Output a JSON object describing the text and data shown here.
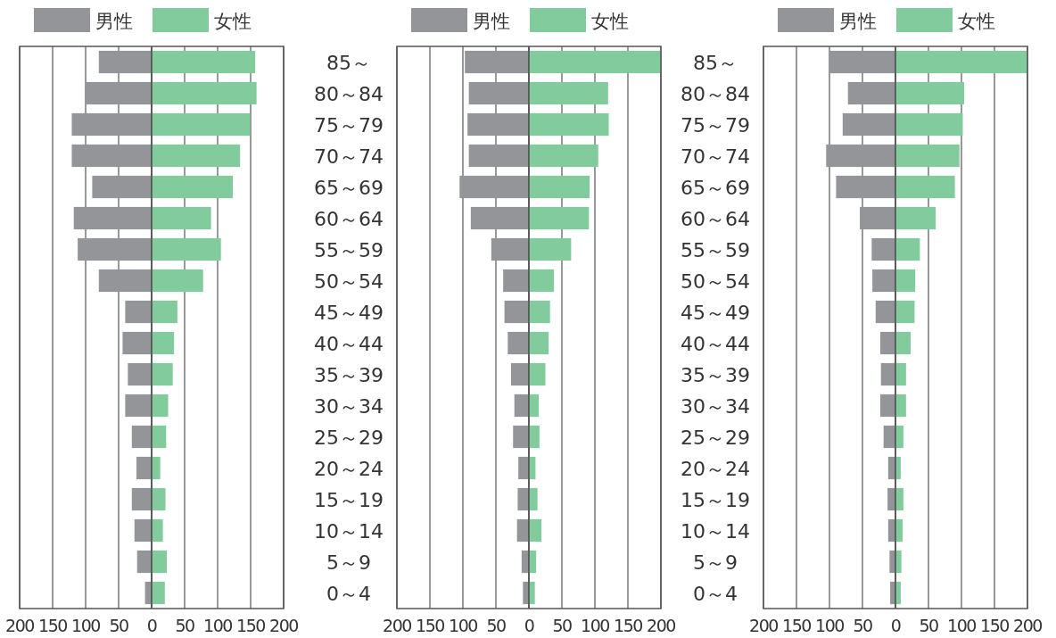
{
  "chart_data": [
    {
      "type": "bar",
      "orientation": "horizontal",
      "stacked": true,
      "legend": "top",
      "grid": "x",
      "tick_labels": "x",
      "categories": [
        null,
        null,
        null,
        null,
        null,
        null,
        null,
        null,
        null,
        null,
        null,
        null,
        null,
        null,
        null,
        null,
        null,
        null
      ],
      "xlim": [
        -200,
        200
      ],
      "xticks": [
        {
          "value": -200,
          "label": "200"
        },
        {
          "value": -150,
          "label": "150"
        },
        {
          "value": -100,
          "label": "100"
        },
        {
          "value": -50,
          "label": "50"
        },
        0,
        50,
        100,
        150,
        200
      ],
      "series": [
        {
          "name": "男性",
          "color": "#939598",
          "values": [
            -80,
            -101,
            -121,
            -121,
            -90,
            -118,
            -112,
            -80,
            -40,
            -44,
            -36,
            -40,
            -30,
            -23,
            -30,
            -26,
            -22,
            -10
          ]
        },
        {
          "name": "女性",
          "color": "#82cb9c",
          "values": [
            157,
            159,
            149,
            134,
            123,
            90,
            105,
            78,
            39,
            34,
            32,
            25,
            22,
            13,
            21,
            17,
            23,
            20
          ]
        }
      ]
    },
    {
      "type": "bar",
      "orientation": "horizontal",
      "legend": "top",
      "grid": "x",
      "categories": [
        "85～",
        "80～84",
        "75～79",
        "70～74",
        "65～69",
        "60～64",
        "55～59",
        "50～54",
        "45～49",
        "40～44",
        "35～39",
        "30～34",
        "25～29",
        "20～24",
        "15～19",
        "10～14",
        "5～9",
        "0～4"
      ],
      "xlim": [
        -200,
        200
      ],
      "xticks": [
        {
          "value": -200,
          "label": "200"
        },
        {
          "value": -150,
          "label": "150"
        },
        {
          "value": -100,
          "label": "100"
        },
        {
          "value": -50,
          "label": "50"
        },
        0,
        50,
        100,
        150,
        200
      ],
      "stacked": true,
      "series": [
        {
          "name": "男性",
          "color": "#939598",
          "values": [
            -97,
            -91,
            -93,
            -91,
            -105,
            -88,
            -57,
            -39,
            -37,
            -32,
            -27,
            -22,
            -24,
            -16,
            -17,
            -18,
            -11,
            -9
          ]
        },
        {
          "name": "女性",
          "color": "#82cb9c",
          "values": [
            200,
            120,
            121,
            105,
            92,
            91,
            64,
            38,
            32,
            30,
            25,
            15,
            16,
            10,
            13,
            19,
            11,
            9
          ]
        }
      ]
    },
    {
      "type": "bar",
      "orientation": "horizontal",
      "legend": "top",
      "grid": "x",
      "categories": [
        "85～",
        "80～84",
        "75～79",
        "70～74",
        "65～69",
        "60～64",
        "55～59",
        "50～54",
        "45～49",
        "40～44",
        "35～39",
        "30～34",
        "25～29",
        "20～24",
        "15～19",
        "10～14",
        "5～9",
        "0～4"
      ],
      "xlim": [
        -200,
        200
      ],
      "xticks": [
        {
          "value": -200,
          "label": "200"
        },
        {
          "value": -150,
          "label": "150"
        },
        {
          "value": -100,
          "label": "100"
        },
        {
          "value": -50,
          "label": "50"
        },
        0,
        50,
        100,
        150,
        200
      ],
      "stacked": true,
      "series": [
        {
          "name": "男性",
          "color": "#939598",
          "values": [
            -100,
            -72,
            -80,
            -105,
            -90,
            -54,
            -36,
            -35,
            -30,
            -23,
            -22,
            -23,
            -18,
            -11,
            -12,
            -11,
            -9,
            -8
          ]
        },
        {
          "name": "女性",
          "color": "#82cb9c",
          "values": [
            200,
            104,
            102,
            97,
            90,
            61,
            37,
            30,
            29,
            23,
            16,
            16,
            12,
            8,
            12,
            11,
            9,
            8
          ]
        }
      ]
    }
  ]
}
